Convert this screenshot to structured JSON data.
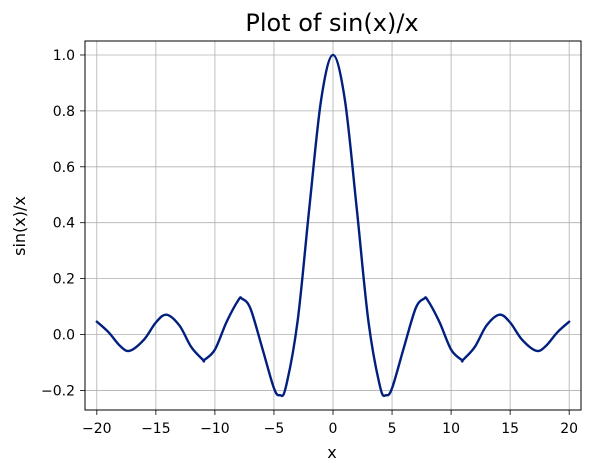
{
  "chart_data": {
    "type": "line",
    "title": "Plot of sin(x)/x",
    "xlabel": "x",
    "ylabel": "sin(x)/x",
    "xlim": [
      -21,
      21
    ],
    "ylim": [
      -0.27,
      1.05
    ],
    "grid": true,
    "xticks": [
      -20,
      -15,
      -10,
      -5,
      0,
      5,
      10,
      15,
      20
    ],
    "xtick_labels": [
      "−20",
      "−15",
      "−10",
      "−5",
      "0",
      "5",
      "10",
      "15",
      "20"
    ],
    "yticks": [
      -0.2,
      0.0,
      0.2,
      0.4,
      0.6,
      0.8,
      1.0
    ],
    "ytick_labels": [
      "−0.2",
      "0.0",
      "0.2",
      "0.4",
      "0.6",
      "0.8",
      "1.0"
    ],
    "series": [
      {
        "color": "#001f7f",
        "x": [
          -20,
          -19,
          -18,
          -17.2,
          -16,
          -15,
          -14.1,
          -13,
          -12,
          -11,
          -10.9,
          -10,
          -9,
          -8,
          -7.7,
          -7,
          -6,
          -5,
          -4.5,
          -4,
          -3,
          -2,
          -1,
          0,
          1,
          2,
          3,
          4,
          4.5,
          5,
          6,
          7,
          7.7,
          8,
          9,
          10,
          10.9,
          11,
          12,
          13,
          14.1,
          15,
          16,
          17.2,
          18,
          19,
          20
        ],
        "y": [
          0.046,
          0.008,
          -0.042,
          -0.058,
          -0.018,
          0.043,
          0.071,
          0.032,
          -0.045,
          -0.091,
          -0.091,
          -0.054,
          0.046,
          0.124,
          0.128,
          0.094,
          -0.047,
          -0.192,
          -0.217,
          -0.189,
          0.047,
          0.455,
          0.841,
          1.0,
          0.841,
          0.455,
          0.047,
          -0.189,
          -0.217,
          -0.192,
          -0.047,
          0.094,
          0.128,
          0.124,
          0.046,
          -0.054,
          -0.091,
          -0.091,
          -0.045,
          0.032,
          0.071,
          0.043,
          -0.018,
          -0.058,
          -0.042,
          0.008,
          0.046
        ]
      }
    ]
  }
}
